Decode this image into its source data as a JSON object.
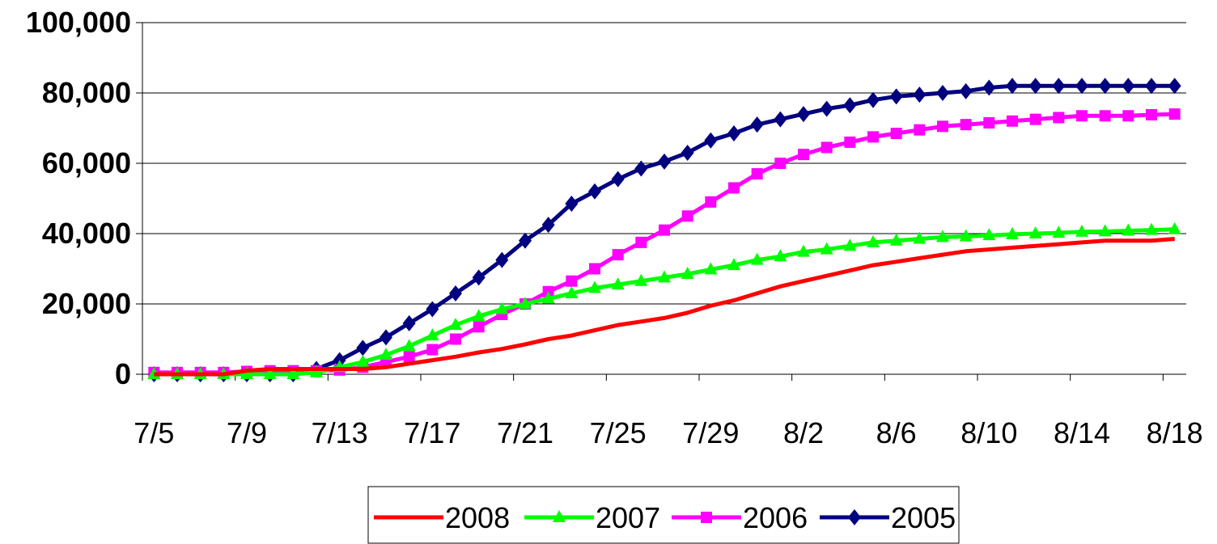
{
  "chart_data": {
    "type": "line",
    "title": "",
    "xlabel": "",
    "ylabel": "",
    "x_start": "7/5",
    "x_end": "8/18",
    "x_tick_labels": [
      "7/5",
      "7/9",
      "7/13",
      "7/17",
      "7/21",
      "7/25",
      "7/29",
      "8/2",
      "8/6",
      "8/10",
      "8/14",
      "8/18"
    ],
    "y_tick_labels": [
      "0",
      "20,000",
      "40,000",
      "60,000",
      "80,000",
      "100,000"
    ],
    "ylim": [
      0,
      100000
    ],
    "grid": "horizontal",
    "legend_position": "bottom",
    "series": [
      {
        "name": "2008",
        "color": "#ff0000",
        "marker": "none",
        "values": [
          0,
          0,
          0,
          0,
          1000,
          1500,
          1500,
          1500,
          1500,
          1500,
          2000,
          3000,
          4000,
          5000,
          6200,
          7200,
          8500,
          10000,
          11000,
          12500,
          14000,
          15000,
          16000,
          17500,
          19500,
          21000,
          23000,
          25000,
          26500,
          28000,
          29500,
          31000,
          32000,
          33000,
          34000,
          35000,
          35500,
          36000,
          36500,
          37000,
          37500,
          38000,
          38000,
          38000,
          38500
        ]
      },
      {
        "name": "2007",
        "color": "#00ff00",
        "marker": "triangle",
        "values": [
          0,
          0,
          0,
          0,
          0,
          0,
          0,
          500,
          2000,
          3500,
          5500,
          8000,
          11000,
          14000,
          16500,
          18500,
          20000,
          21500,
          23000,
          24500,
          25500,
          26500,
          27500,
          28500,
          29800,
          31000,
          32500,
          33500,
          34800,
          35500,
          36500,
          37500,
          38000,
          38500,
          39000,
          39200,
          39500,
          39800,
          40000,
          40200,
          40500,
          40600,
          40800,
          41000,
          41200
        ]
      },
      {
        "name": "2006",
        "color": "#ff00ff",
        "marker": "square",
        "values": [
          500,
          500,
          500,
          500,
          800,
          1000,
          1000,
          1000,
          1200,
          2000,
          3500,
          5000,
          7000,
          10000,
          13500,
          17000,
          20000,
          23500,
          26500,
          30000,
          34000,
          37500,
          41000,
          45000,
          49000,
          53000,
          57000,
          60000,
          62500,
          64500,
          66000,
          67500,
          68500,
          69500,
          70500,
          71000,
          71500,
          72000,
          72500,
          73000,
          73500,
          73500,
          73500,
          73800,
          74000
        ]
      },
      {
        "name": "2005",
        "color": "#000080",
        "marker": "diamond",
        "values": [
          0,
          0,
          0,
          0,
          0,
          0,
          0,
          1500,
          4000,
          7500,
          10500,
          14500,
          18500,
          23000,
          27500,
          32500,
          38000,
          42500,
          48500,
          52000,
          55500,
          58500,
          60500,
          63000,
          66500,
          68500,
          71000,
          72500,
          74000,
          75500,
          76500,
          78000,
          79000,
          79500,
          80000,
          80500,
          81500,
          82000,
          82000,
          82000,
          82000,
          82000,
          82000,
          82000,
          82000
        ]
      }
    ]
  }
}
